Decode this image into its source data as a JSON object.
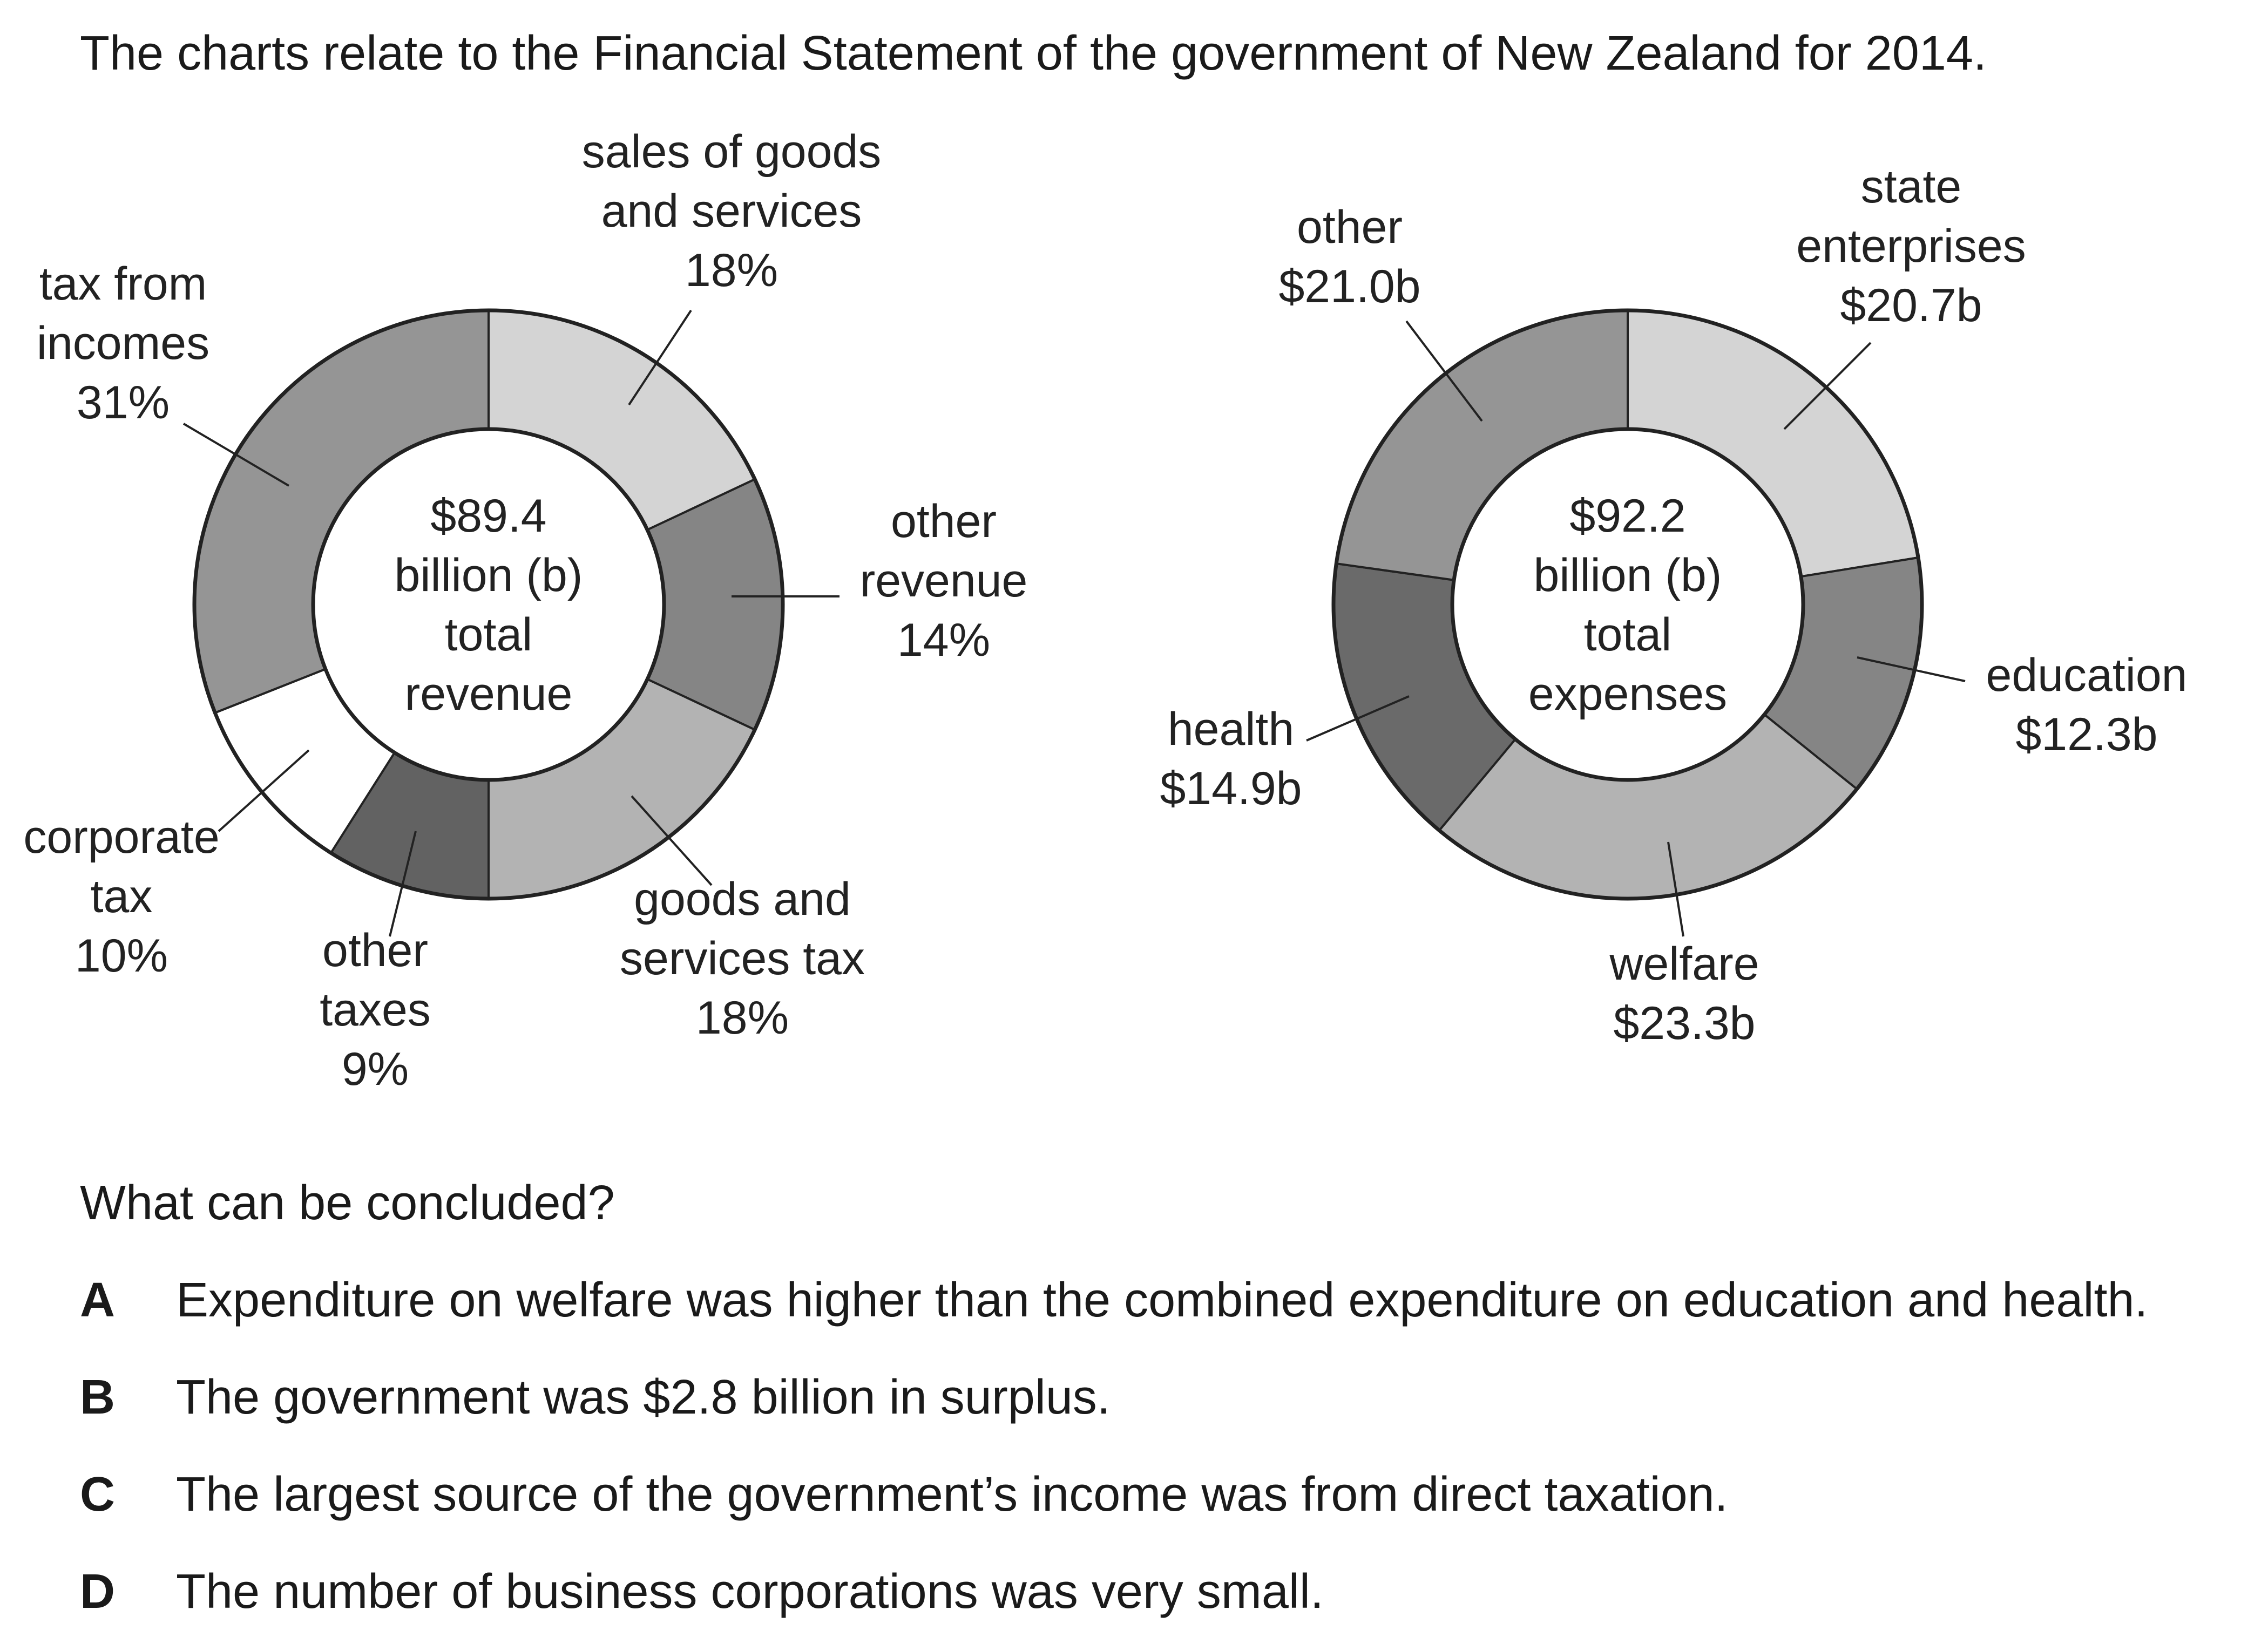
{
  "intro": "The charts relate to the Financial Statement of the government of New Zealand for 2014.",
  "chart_data": [
    {
      "type": "pie",
      "variant": "donut",
      "center_text": [
        "$89.4",
        "billion (b)",
        "total",
        "revenue"
      ],
      "slices": [
        {
          "label": [
            "sales of goods",
            "and services",
            "18%"
          ],
          "value": 18,
          "color": "#d4d4d4"
        },
        {
          "label": [
            "other",
            "revenue",
            "14%"
          ],
          "value": 14,
          "color": "#858585"
        },
        {
          "label": [
            "goods and",
            "services tax",
            "18%"
          ],
          "value": 18,
          "color": "#b3b3b3"
        },
        {
          "label": [
            "other",
            "taxes",
            "9%"
          ],
          "value": 9,
          "color": "#626262"
        },
        {
          "label": [
            "corporate",
            "tax",
            "10%"
          ],
          "value": 10,
          "color": "#ffffff"
        },
        {
          "label": [
            "tax from",
            "incomes",
            "31%"
          ],
          "value": 31,
          "color": "#959595"
        }
      ]
    },
    {
      "type": "pie",
      "variant": "donut",
      "center_text": [
        "$92.2",
        "billion (b)",
        "total",
        "expenses"
      ],
      "slices": [
        {
          "label": [
            "state",
            "enterprises",
            "$20.7b"
          ],
          "value": 20.7,
          "color": "#d4d4d4"
        },
        {
          "label": [
            "education",
            "$12.3b"
          ],
          "value": 12.3,
          "color": "#858585"
        },
        {
          "label": [
            "welfare",
            "$23.3b"
          ],
          "value": 23.3,
          "color": "#b3b3b3"
        },
        {
          "label": [
            "health",
            "$14.9b"
          ],
          "value": 14.9,
          "color": "#6a6a6a"
        },
        {
          "label": [
            "other",
            "$21.0b"
          ],
          "value": 21.0,
          "color": "#959595"
        }
      ]
    }
  ],
  "question": "What can be concluded?",
  "options": [
    {
      "letter": "A",
      "text": "Expenditure on welfare was higher than the combined expenditure on education and health."
    },
    {
      "letter": "B",
      "text": "The government was $2.8 billion in surplus."
    },
    {
      "letter": "C",
      "text": "The largest source of the government’s income was from direct taxation."
    },
    {
      "letter": "D",
      "text": "The number of business corporations was very small."
    }
  ]
}
